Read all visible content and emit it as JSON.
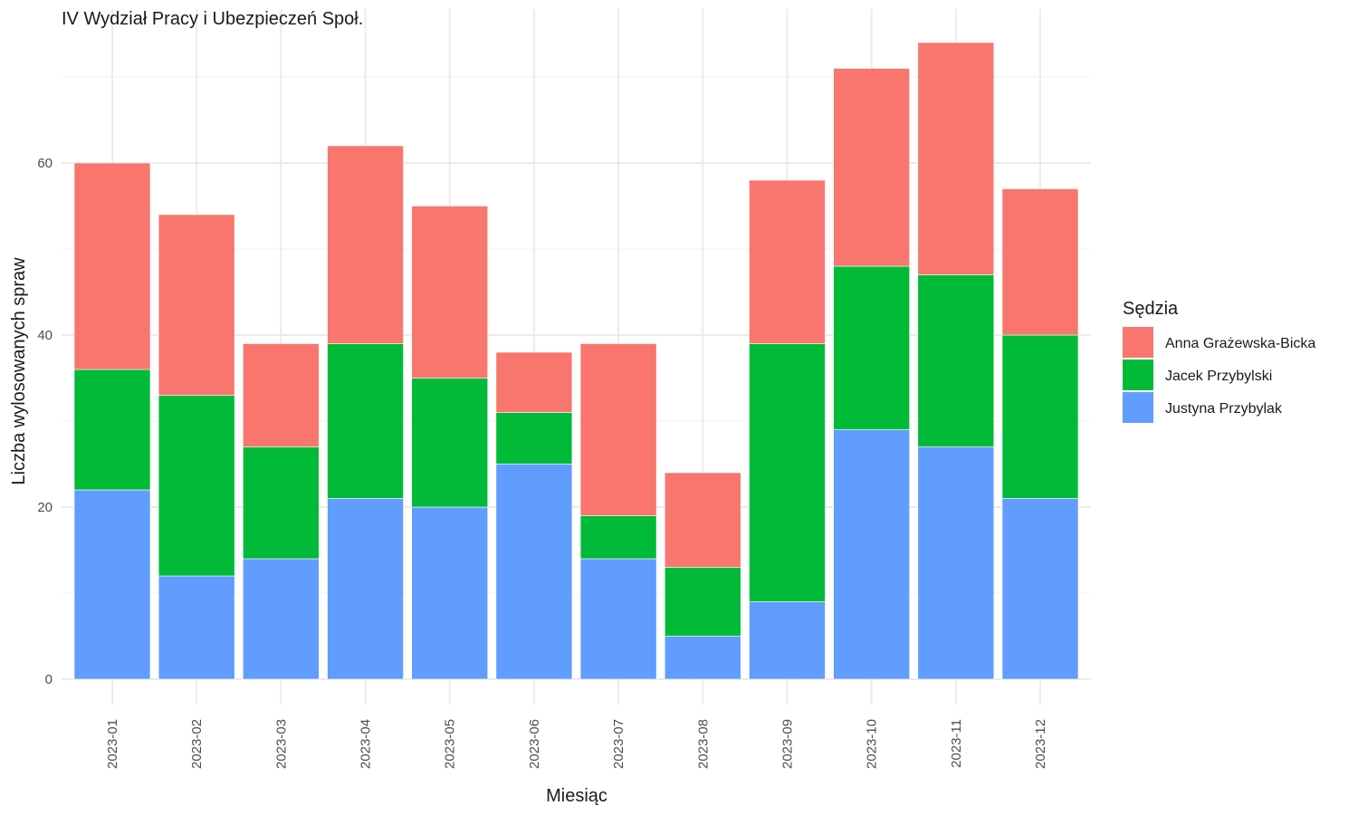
{
  "chart_data": {
    "type": "bar",
    "stacked": true,
    "title": "IV Wydział Pracy i Ubezpieczeń Społ.",
    "xlabel": "Miesiąc",
    "ylabel": "Liczba wylosowanych spraw",
    "ylim": [
      0,
      78
    ],
    "yticks": [
      0,
      20,
      40,
      60
    ],
    "grid": true,
    "legend": {
      "title": "Sędzia",
      "placement": "right"
    },
    "categories": [
      "2023-01",
      "2023-02",
      "2023-03",
      "2023-04",
      "2023-05",
      "2023-06",
      "2023-07",
      "2023-08",
      "2023-09",
      "2023-10",
      "2023-11",
      "2023-12"
    ],
    "series": [
      {
        "name": "Justyna Przybylak",
        "color": "#619CFF",
        "values": [
          22,
          12,
          14,
          21,
          20,
          25,
          14,
          5,
          9,
          29,
          27,
          21
        ]
      },
      {
        "name": "Jacek Przybylski",
        "color": "#00BA38",
        "values": [
          14,
          21,
          13,
          18,
          15,
          6,
          5,
          8,
          30,
          19,
          20,
          19
        ]
      },
      {
        "name": "Anna Grażewska-Bicka",
        "color": "#F8766D",
        "values": [
          24,
          21,
          12,
          23,
          20,
          7,
          20,
          11,
          19,
          23,
          27,
          17
        ]
      }
    ],
    "legend_order": [
      "Anna Grażewska-Bicka",
      "Jacek Przybylski",
      "Justyna Przybylak"
    ]
  }
}
